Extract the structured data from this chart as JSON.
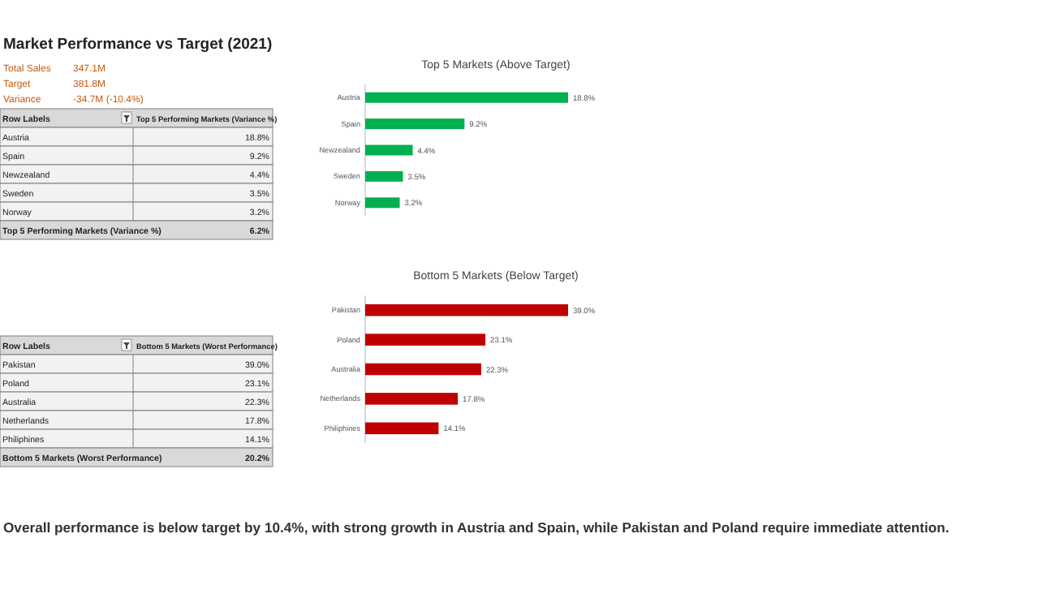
{
  "chart_data": [
    {
      "type": "other",
      "title": "Market Performance vs Target (2021)",
      "annotations": [
        "Total Sales",
        "347.1M",
        "Target",
        "381.8M",
        "Variance",
        "-34.7M (-10.4%)"
      ]
    },
    {
      "type": "other",
      "annotations": [
        "Row Labels",
        "Top 5 Performing Markets (Variance %)",
        "Austria",
        "18.8%",
        "Spain",
        "9.2%",
        "Newzealand",
        "4.4%",
        "Sweden",
        "3.5%",
        "Norway",
        "3.2%",
        "Top 5 Performing Markets (Variance %)",
        "6.2%"
      ]
    },
    {
      "type": "bar",
      "orientation": "horizontal",
      "title": "Top 5 Markets (Above Target)",
      "categories": [
        "Austria",
        "Spain",
        "Newzealand",
        "Sweden",
        "Norway"
      ],
      "values": [
        18.8,
        9.2,
        4.4,
        3.5,
        3.2
      ],
      "value_labels": [
        "18.8%",
        "9.2%",
        "4.4%",
        "3.5%",
        "3.2%"
      ],
      "color": "#00b050"
    },
    {
      "type": "bar",
      "orientation": "horizontal",
      "title": "Bottom 5 Markets (Below Target)",
      "categories": [
        "Pakistan",
        "Poland",
        "Australia",
        "Netherlands",
        "Philiphines"
      ],
      "values": [
        39.0,
        23.1,
        22.3,
        17.8,
        14.1
      ],
      "value_labels": [
        "39.0%",
        "23.1%",
        "22.3%",
        "17.8%",
        "14.1%"
      ],
      "color": "#c00000"
    },
    {
      "type": "other",
      "annotations": [
        "Row Labels",
        "Bottom 5 Markets (Worst Performance)",
        "Pakistan",
        "39.0%",
        "Poland",
        "23.1%",
        "Australia",
        "22.3%",
        "Netherlands",
        "17.8%",
        "Philiphines",
        "14.1%",
        "Bottom 5 Markets (Worst Performance)",
        "20.2%"
      ]
    },
    {
      "type": "other",
      "annotations": [
        "Overall performance is below target by 10.4%, with strong growth in Austria and Spain, while Pakistan and Poland require immediate attention."
      ]
    }
  ]
}
